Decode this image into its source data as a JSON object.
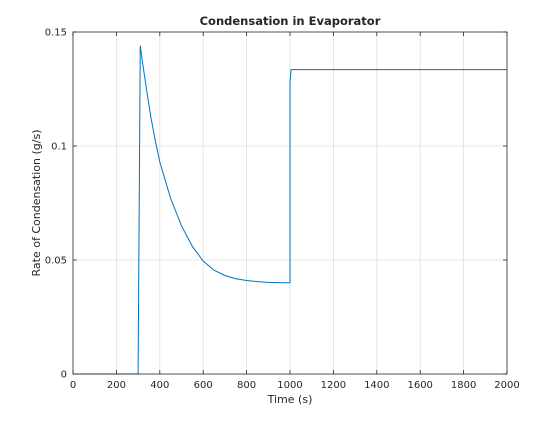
{
  "chart_data": {
    "type": "line",
    "title": "Condensation in Evaporator",
    "xlabel": "Time (s)",
    "ylabel": "Rate of Condensation (g/s)",
    "xlim": [
      0,
      2000
    ],
    "ylim": [
      0,
      0.15
    ],
    "xticks": [
      0,
      200,
      400,
      600,
      800,
      1000,
      1200,
      1400,
      1600,
      1800,
      2000
    ],
    "yticks": [
      0,
      0.05,
      0.1,
      0.15
    ],
    "xtick_labels": [
      "0",
      "200",
      "400",
      "600",
      "800",
      "1000",
      "1200",
      "1400",
      "1600",
      "1800",
      "2000"
    ],
    "ytick_labels": [
      "0",
      "0.05",
      "0.1",
      "0.15"
    ],
    "grid": true,
    "line_color": "#0072bd",
    "series": [
      {
        "x": [
          0,
          300,
          300,
          310,
          320,
          340,
          360,
          380,
          400,
          450,
          500,
          550,
          600,
          650,
          700,
          750,
          800,
          850,
          900,
          950,
          1000,
          1000,
          1005,
          1100,
          1200,
          1400,
          1600,
          1800,
          2000
        ],
        "y": [
          0,
          0,
          0.001,
          0.144,
          0.137,
          0.124,
          0.112,
          0.102,
          0.093,
          0.077,
          0.065,
          0.056,
          0.0495,
          0.0455,
          0.0432,
          0.0418,
          0.041,
          0.0405,
          0.0402,
          0.0401,
          0.04,
          0.128,
          0.1335,
          0.1335,
          0.1335,
          0.1335,
          0.1335,
          0.1335,
          0.1335
        ]
      }
    ]
  }
}
